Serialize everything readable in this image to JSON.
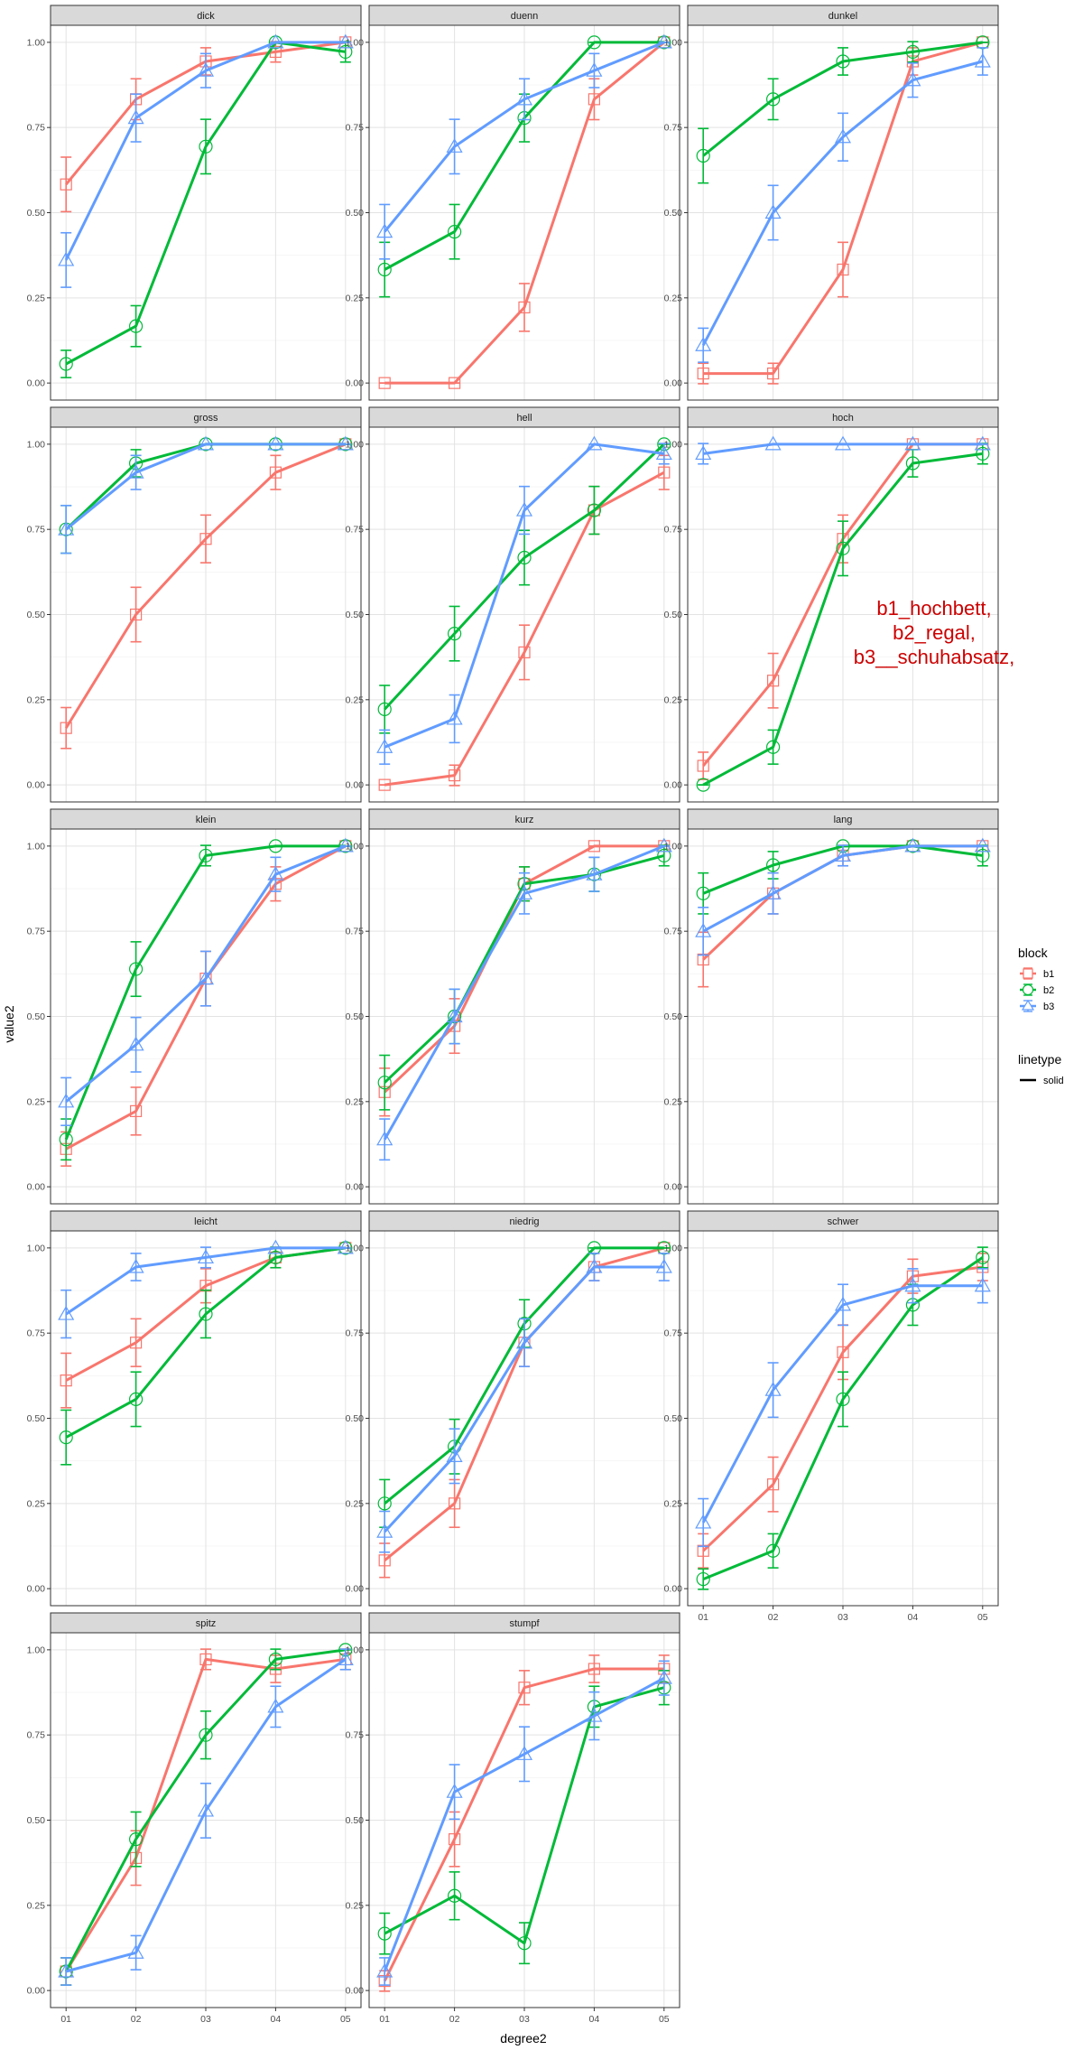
{
  "chart_data": {
    "type": "line",
    "xlabel": "degree2",
    "ylabel": "value2",
    "x": [
      "01",
      "02",
      "03",
      "04",
      "05"
    ],
    "ylim": [
      0,
      1
    ],
    "yticks": [
      "0.00",
      "0.25",
      "0.50",
      "0.75",
      "1.00"
    ],
    "grid": true,
    "facet_columns": 3,
    "colors": {
      "b1": "#F8766D",
      "b2": "#00BA38",
      "b3": "#619CFF"
    },
    "markers": {
      "b1": "square",
      "b2": "circle",
      "b3": "triangle"
    },
    "legend": {
      "placement": "right",
      "block_title": "block",
      "entries": [
        "b1",
        "b2",
        "b3"
      ],
      "linetype_title": "linetype",
      "linetype_entries": [
        "solid"
      ]
    },
    "annotation": {
      "panel": "hoch",
      "lines": [
        "b1_hochbett,",
        "b2_regal,",
        "b3__schuhabsatz,"
      ]
    },
    "panels": [
      {
        "name": "dick",
        "series": [
          {
            "name": "b1",
            "values": [
              0.583,
              0.833,
              0.944,
              0.972,
              1.0
            ],
            "error": [
              0.08,
              0.06,
              0.04,
              0.03,
              0.0
            ]
          },
          {
            "name": "b2",
            "values": [
              0.056,
              0.167,
              0.694,
              1.0,
              0.972
            ],
            "error": [
              0.04,
              0.06,
              0.08,
              0.0,
              0.03
            ]
          },
          {
            "name": "b3",
            "values": [
              0.361,
              0.778,
              0.917,
              1.0,
              1.0
            ],
            "error": [
              0.08,
              0.07,
              0.05,
              0.0,
              0.0
            ]
          }
        ]
      },
      {
        "name": "duenn",
        "series": [
          {
            "name": "b1",
            "values": [
              0.0,
              0.0,
              0.222,
              0.833,
              1.0
            ],
            "error": [
              0.0,
              0.0,
              0.07,
              0.06,
              0.0
            ]
          },
          {
            "name": "b2",
            "values": [
              0.333,
              0.444,
              0.778,
              1.0,
              1.0
            ],
            "error": [
              0.08,
              0.08,
              0.07,
              0.0,
              0.0
            ]
          },
          {
            "name": "b3",
            "values": [
              0.444,
              0.694,
              0.833,
              0.917,
              1.0
            ],
            "error": [
              0.08,
              0.08,
              0.06,
              0.05,
              0.0
            ]
          }
        ]
      },
      {
        "name": "dunkel",
        "series": [
          {
            "name": "b1",
            "values": [
              0.028,
              0.028,
              0.333,
              0.944,
              1.0
            ],
            "error": [
              0.03,
              0.03,
              0.08,
              0.04,
              0.0
            ]
          },
          {
            "name": "b2",
            "values": [
              0.667,
              0.833,
              0.944,
              0.972,
              1.0
            ],
            "error": [
              0.08,
              0.06,
              0.04,
              0.03,
              0.0
            ]
          },
          {
            "name": "b3",
            "values": [
              0.111,
              0.5,
              0.722,
              0.889,
              0.944
            ],
            "error": [
              0.05,
              0.08,
              0.07,
              0.05,
              0.04
            ]
          }
        ]
      },
      {
        "name": "gross",
        "series": [
          {
            "name": "b1",
            "values": [
              0.167,
              0.5,
              0.722,
              0.917,
              1.0
            ],
            "error": [
              0.06,
              0.08,
              0.07,
              0.05,
              0.0
            ]
          },
          {
            "name": "b2",
            "values": [
              0.75,
              0.944,
              1.0,
              1.0,
              1.0
            ],
            "error": [
              0.07,
              0.04,
              0.0,
              0.0,
              0.0
            ]
          },
          {
            "name": "b3",
            "values": [
              0.75,
              0.917,
              1.0,
              1.0,
              1.0
            ],
            "error": [
              0.07,
              0.05,
              0.0,
              0.0,
              0.0
            ]
          }
        ]
      },
      {
        "name": "hell",
        "series": [
          {
            "name": "b1",
            "values": [
              0.0,
              0.028,
              0.389,
              0.806,
              0.917
            ],
            "error": [
              0.0,
              0.03,
              0.08,
              0.07,
              0.05
            ]
          },
          {
            "name": "b2",
            "values": [
              0.222,
              0.444,
              0.667,
              0.806,
              1.0
            ],
            "error": [
              0.07,
              0.08,
              0.08,
              0.07,
              0.0
            ]
          },
          {
            "name": "b3",
            "values": [
              0.111,
              0.194,
              0.806,
              1.0,
              0.972
            ],
            "error": [
              0.05,
              0.07,
              0.07,
              0.0,
              0.03
            ]
          }
        ]
      },
      {
        "name": "hoch",
        "series": [
          {
            "name": "b1",
            "values": [
              0.056,
              0.306,
              0.722,
              1.0,
              1.0
            ],
            "error": [
              0.04,
              0.08,
              0.07,
              0.0,
              0.0
            ]
          },
          {
            "name": "b2",
            "values": [
              0.0,
              0.111,
              0.694,
              0.944,
              0.972
            ],
            "error": [
              0.0,
              0.05,
              0.08,
              0.04,
              0.03
            ]
          },
          {
            "name": "b3",
            "values": [
              0.972,
              1.0,
              1.0,
              1.0,
              1.0
            ],
            "error": [
              0.03,
              0.0,
              0.0,
              0.0,
              0.0
            ]
          }
        ]
      },
      {
        "name": "klein",
        "series": [
          {
            "name": "b1",
            "values": [
              0.111,
              0.222,
              0.611,
              0.889,
              1.0
            ],
            "error": [
              0.05,
              0.07,
              0.08,
              0.05,
              0.0
            ]
          },
          {
            "name": "b2",
            "values": [
              0.139,
              0.639,
              0.972,
              1.0,
              1.0
            ],
            "error": [
              0.06,
              0.08,
              0.03,
              0.0,
              0.0
            ]
          },
          {
            "name": "b3",
            "values": [
              0.25,
              0.417,
              0.611,
              0.917,
              1.0
            ],
            "error": [
              0.07,
              0.08,
              0.08,
              0.05,
              0.0
            ]
          }
        ]
      },
      {
        "name": "kurz",
        "series": [
          {
            "name": "b1",
            "values": [
              0.278,
              0.472,
              0.889,
              1.0,
              1.0
            ],
            "error": [
              0.07,
              0.08,
              0.05,
              0.0,
              0.0
            ]
          },
          {
            "name": "b2",
            "values": [
              0.306,
              0.5,
              0.889,
              0.917,
              0.972
            ],
            "error": [
              0.08,
              0.08,
              0.05,
              0.05,
              0.03
            ]
          },
          {
            "name": "b3",
            "values": [
              0.139,
              0.5,
              0.861,
              0.917,
              1.0
            ],
            "error": [
              0.06,
              0.08,
              0.06,
              0.05,
              0.0
            ]
          }
        ]
      },
      {
        "name": "lang",
        "series": [
          {
            "name": "b1",
            "values": [
              0.667,
              0.861,
              0.972,
              1.0,
              1.0
            ],
            "error": [
              0.08,
              0.06,
              0.03,
              0.0,
              0.0
            ]
          },
          {
            "name": "b2",
            "values": [
              0.861,
              0.944,
              1.0,
              1.0,
              0.972
            ],
            "error": [
              0.06,
              0.04,
              0.0,
              0.0,
              0.03
            ]
          },
          {
            "name": "b3",
            "values": [
              0.75,
              0.861,
              0.972,
              1.0,
              1.0
            ],
            "error": [
              0.07,
              0.06,
              0.03,
              0.0,
              0.0
            ]
          }
        ]
      },
      {
        "name": "leicht",
        "series": [
          {
            "name": "b1",
            "values": [
              0.611,
              0.722,
              0.889,
              0.972,
              1.0
            ],
            "error": [
              0.08,
              0.07,
              0.05,
              0.03,
              0.0
            ]
          },
          {
            "name": "b2",
            "values": [
              0.444,
              0.556,
              0.806,
              0.972,
              1.0
            ],
            "error": [
              0.08,
              0.08,
              0.07,
              0.03,
              0.0
            ]
          },
          {
            "name": "b3",
            "values": [
              0.806,
              0.944,
              0.972,
              1.0,
              1.0
            ],
            "error": [
              0.07,
              0.04,
              0.03,
              0.0,
              0.0
            ]
          }
        ]
      },
      {
        "name": "niedrig",
        "series": [
          {
            "name": "b1",
            "values": [
              0.083,
              0.25,
              0.722,
              0.944,
              1.0
            ],
            "error": [
              0.05,
              0.07,
              0.07,
              0.04,
              0.0
            ]
          },
          {
            "name": "b2",
            "values": [
              0.25,
              0.417,
              0.778,
              1.0,
              1.0
            ],
            "error": [
              0.07,
              0.08,
              0.07,
              0.0,
              0.0
            ]
          },
          {
            "name": "b3",
            "values": [
              0.167,
              0.389,
              0.722,
              0.944,
              0.944
            ],
            "error": [
              0.06,
              0.08,
              0.07,
              0.04,
              0.04
            ]
          }
        ]
      },
      {
        "name": "schwer",
        "series": [
          {
            "name": "b1",
            "values": [
              0.111,
              0.306,
              0.694,
              0.917,
              0.944
            ],
            "error": [
              0.05,
              0.08,
              0.08,
              0.05,
              0.04
            ]
          },
          {
            "name": "b2",
            "values": [
              0.028,
              0.111,
              0.556,
              0.833,
              0.972
            ],
            "error": [
              0.03,
              0.05,
              0.08,
              0.06,
              0.03
            ]
          },
          {
            "name": "b3",
            "values": [
              0.194,
              0.583,
              0.833,
              0.889,
              0.889
            ],
            "error": [
              0.07,
              0.08,
              0.06,
              0.05,
              0.05
            ]
          }
        ]
      },
      {
        "name": "spitz",
        "series": [
          {
            "name": "b1",
            "values": [
              0.056,
              0.389,
              0.972,
              0.944,
              0.972
            ],
            "error": [
              0.04,
              0.08,
              0.03,
              0.04,
              0.03
            ]
          },
          {
            "name": "b2",
            "values": [
              0.056,
              0.444,
              0.75,
              0.972,
              1.0
            ],
            "error": [
              0.04,
              0.08,
              0.07,
              0.03,
              0.0
            ]
          },
          {
            "name": "b3",
            "values": [
              0.056,
              0.111,
              0.528,
              0.833,
              0.972
            ],
            "error": [
              0.04,
              0.05,
              0.08,
              0.06,
              0.03
            ]
          }
        ]
      },
      {
        "name": "stumpf",
        "series": [
          {
            "name": "b1",
            "values": [
              0.028,
              0.444,
              0.889,
              0.944,
              0.944
            ],
            "error": [
              0.03,
              0.08,
              0.05,
              0.04,
              0.04
            ]
          },
          {
            "name": "b2",
            "values": [
              0.167,
              0.278,
              0.139,
              0.833,
              0.889
            ],
            "error": [
              0.06,
              0.07,
              0.06,
              0.06,
              0.05
            ]
          },
          {
            "name": "b3",
            "values": [
              0.056,
              0.583,
              0.694,
              0.806,
              0.917
            ],
            "error": [
              0.04,
              0.08,
              0.08,
              0.07,
              0.05
            ]
          }
        ]
      }
    ]
  }
}
